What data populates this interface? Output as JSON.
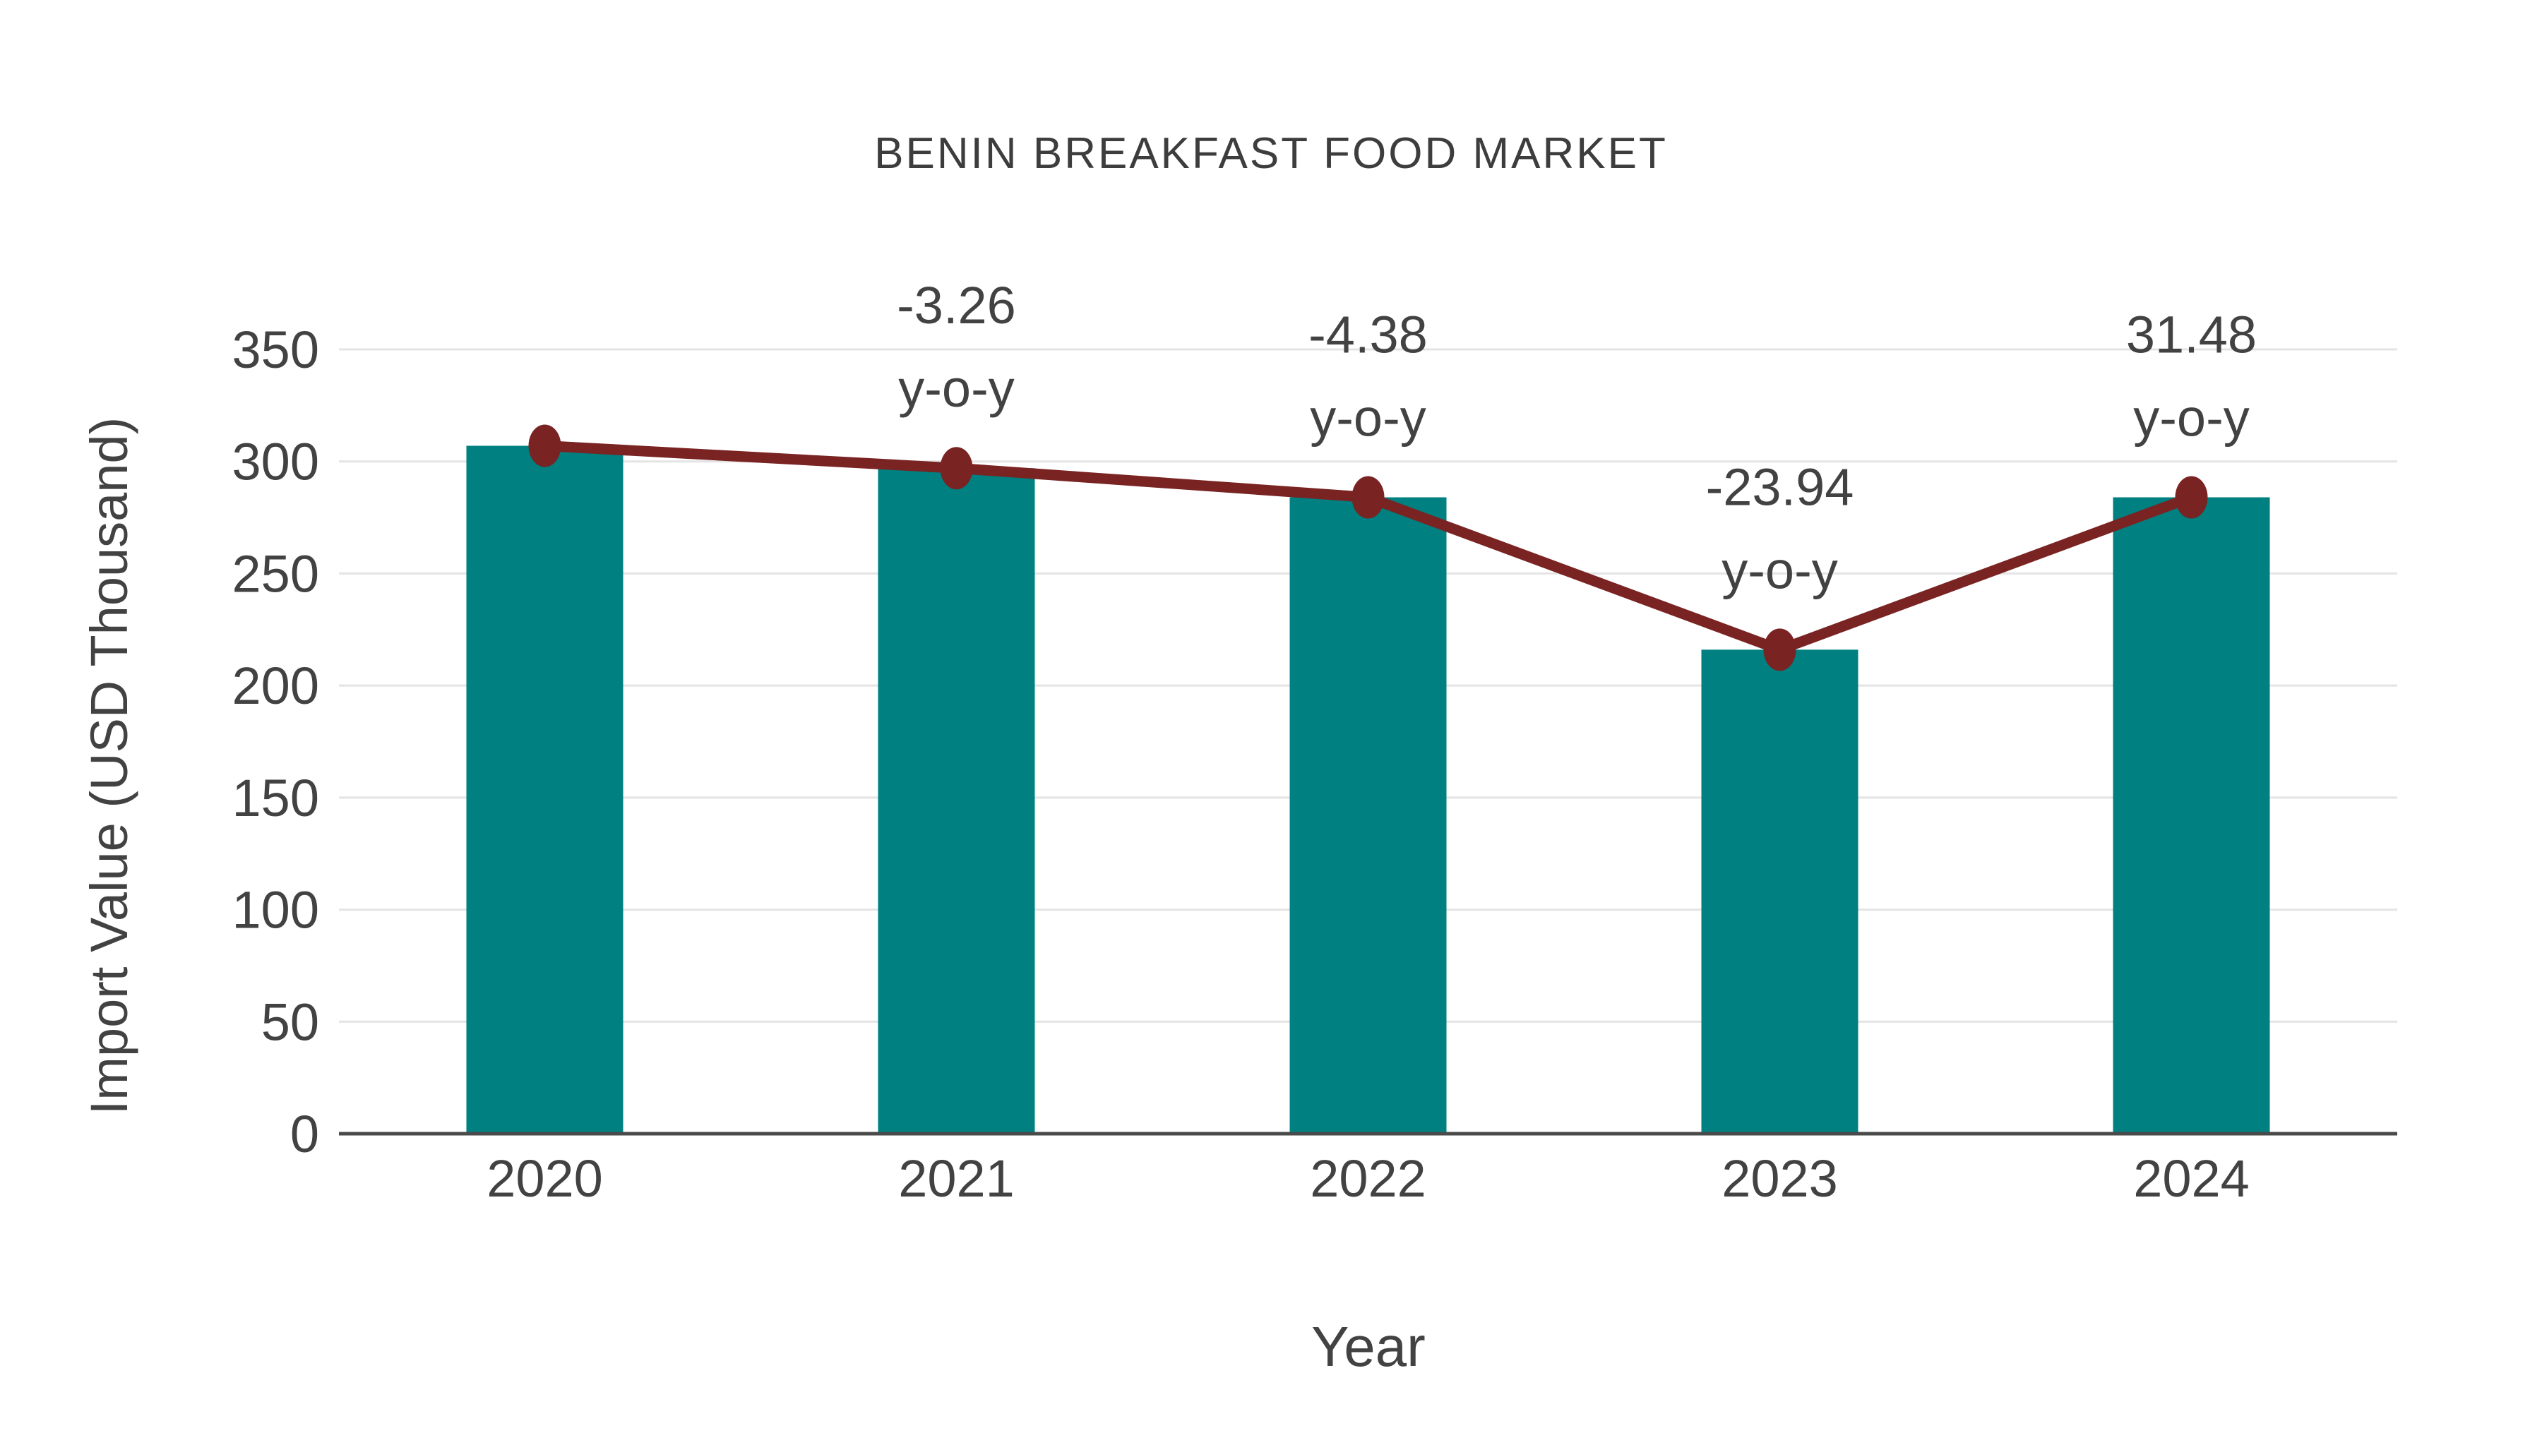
{
  "page": {
    "background": "#FFFFFF"
  },
  "chart_data": {
    "type": "combo-bar-line",
    "title": "BENIN BREAKFAST FOOD MARKET",
    "xlabel": "Year",
    "ylabel": "Import Value (USD Thousand)",
    "categories": [
      "2020",
      "2021",
      "2022",
      "2023",
      "2024"
    ],
    "series": [
      {
        "name": "import-value-bars",
        "type": "bar",
        "values": [
          307,
          297,
          284,
          216,
          284
        ]
      },
      {
        "name": "import-value-trend",
        "type": "line",
        "values": [
          307,
          297,
          284,
          216,
          284
        ]
      }
    ],
    "annotations": [
      {
        "category": "2021",
        "value_label": "-3.26",
        "unit_label": "y-o-y"
      },
      {
        "category": "2022",
        "value_label": "-4.38",
        "unit_label": "y-o-y"
      },
      {
        "category": "2023",
        "value_label": "-23.94",
        "unit_label": "y-o-y"
      },
      {
        "category": "2024",
        "value_label": "31.48",
        "unit_label": "y-o-y"
      }
    ],
    "y_ticks": [
      0,
      50,
      100,
      150,
      200,
      250,
      300,
      350
    ],
    "ylim": [
      0,
      350
    ],
    "grid": "horizontal",
    "legend_position": "none",
    "colors": {
      "bar": "#008080",
      "line": "#7A2323",
      "marker": "#7A2323",
      "grid": "#E4E4E4",
      "axis_line": "#4A4A4A",
      "text": "#424242",
      "title": "#3D3D3D",
      "background": "#FFFFFF"
    }
  }
}
